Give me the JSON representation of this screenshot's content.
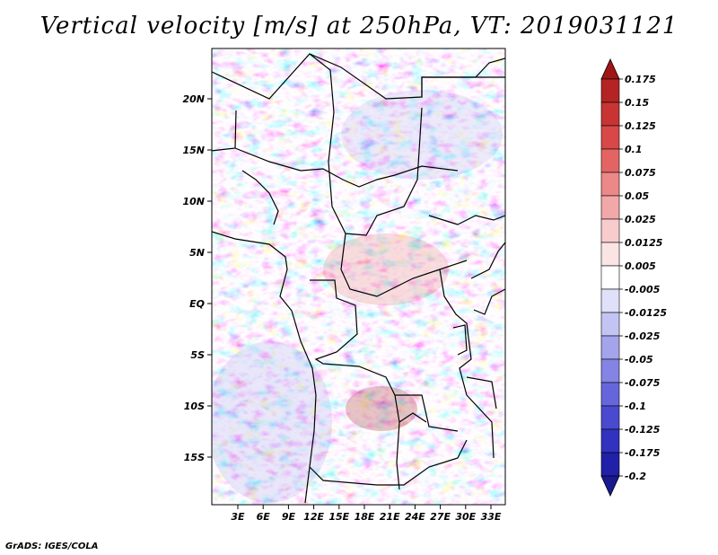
{
  "title": "Vertical velocity [m/s] at 250hPa, VT: 2019031121",
  "credit": "GrADS: IGES/COLA",
  "map": {
    "lat_labels": [
      "20N",
      "15N",
      "10N",
      "5N",
      "EQ",
      "5S",
      "10S",
      "15S"
    ],
    "lon_labels": [
      "3E",
      "6E",
      "9E",
      "12E",
      "15E",
      "18E",
      "21E",
      "24E",
      "27E",
      "30E",
      "33E"
    ]
  },
  "colorbar": {
    "levels": [
      "0.175",
      "0.15",
      "0.125",
      "0.1",
      "0.075",
      "0.05",
      "0.025",
      "0.0125",
      "0.005",
      "-0.005",
      "-0.0125",
      "-0.025",
      "-0.05",
      "-0.075",
      "-0.1",
      "-0.125",
      "-0.175",
      "-0.2"
    ],
    "colors": [
      "#a01616",
      "#b42424",
      "#c83434",
      "#d84848",
      "#e46464",
      "#ec8888",
      "#f2a8a8",
      "#f8cccc",
      "#fbe4e4",
      "#ffffff",
      "#e0e0fa",
      "#c4c4f4",
      "#a4a4ec",
      "#8484e4",
      "#6666dc",
      "#4a4ad0",
      "#3232c0",
      "#2020a8",
      "#1a1a90"
    ]
  }
}
